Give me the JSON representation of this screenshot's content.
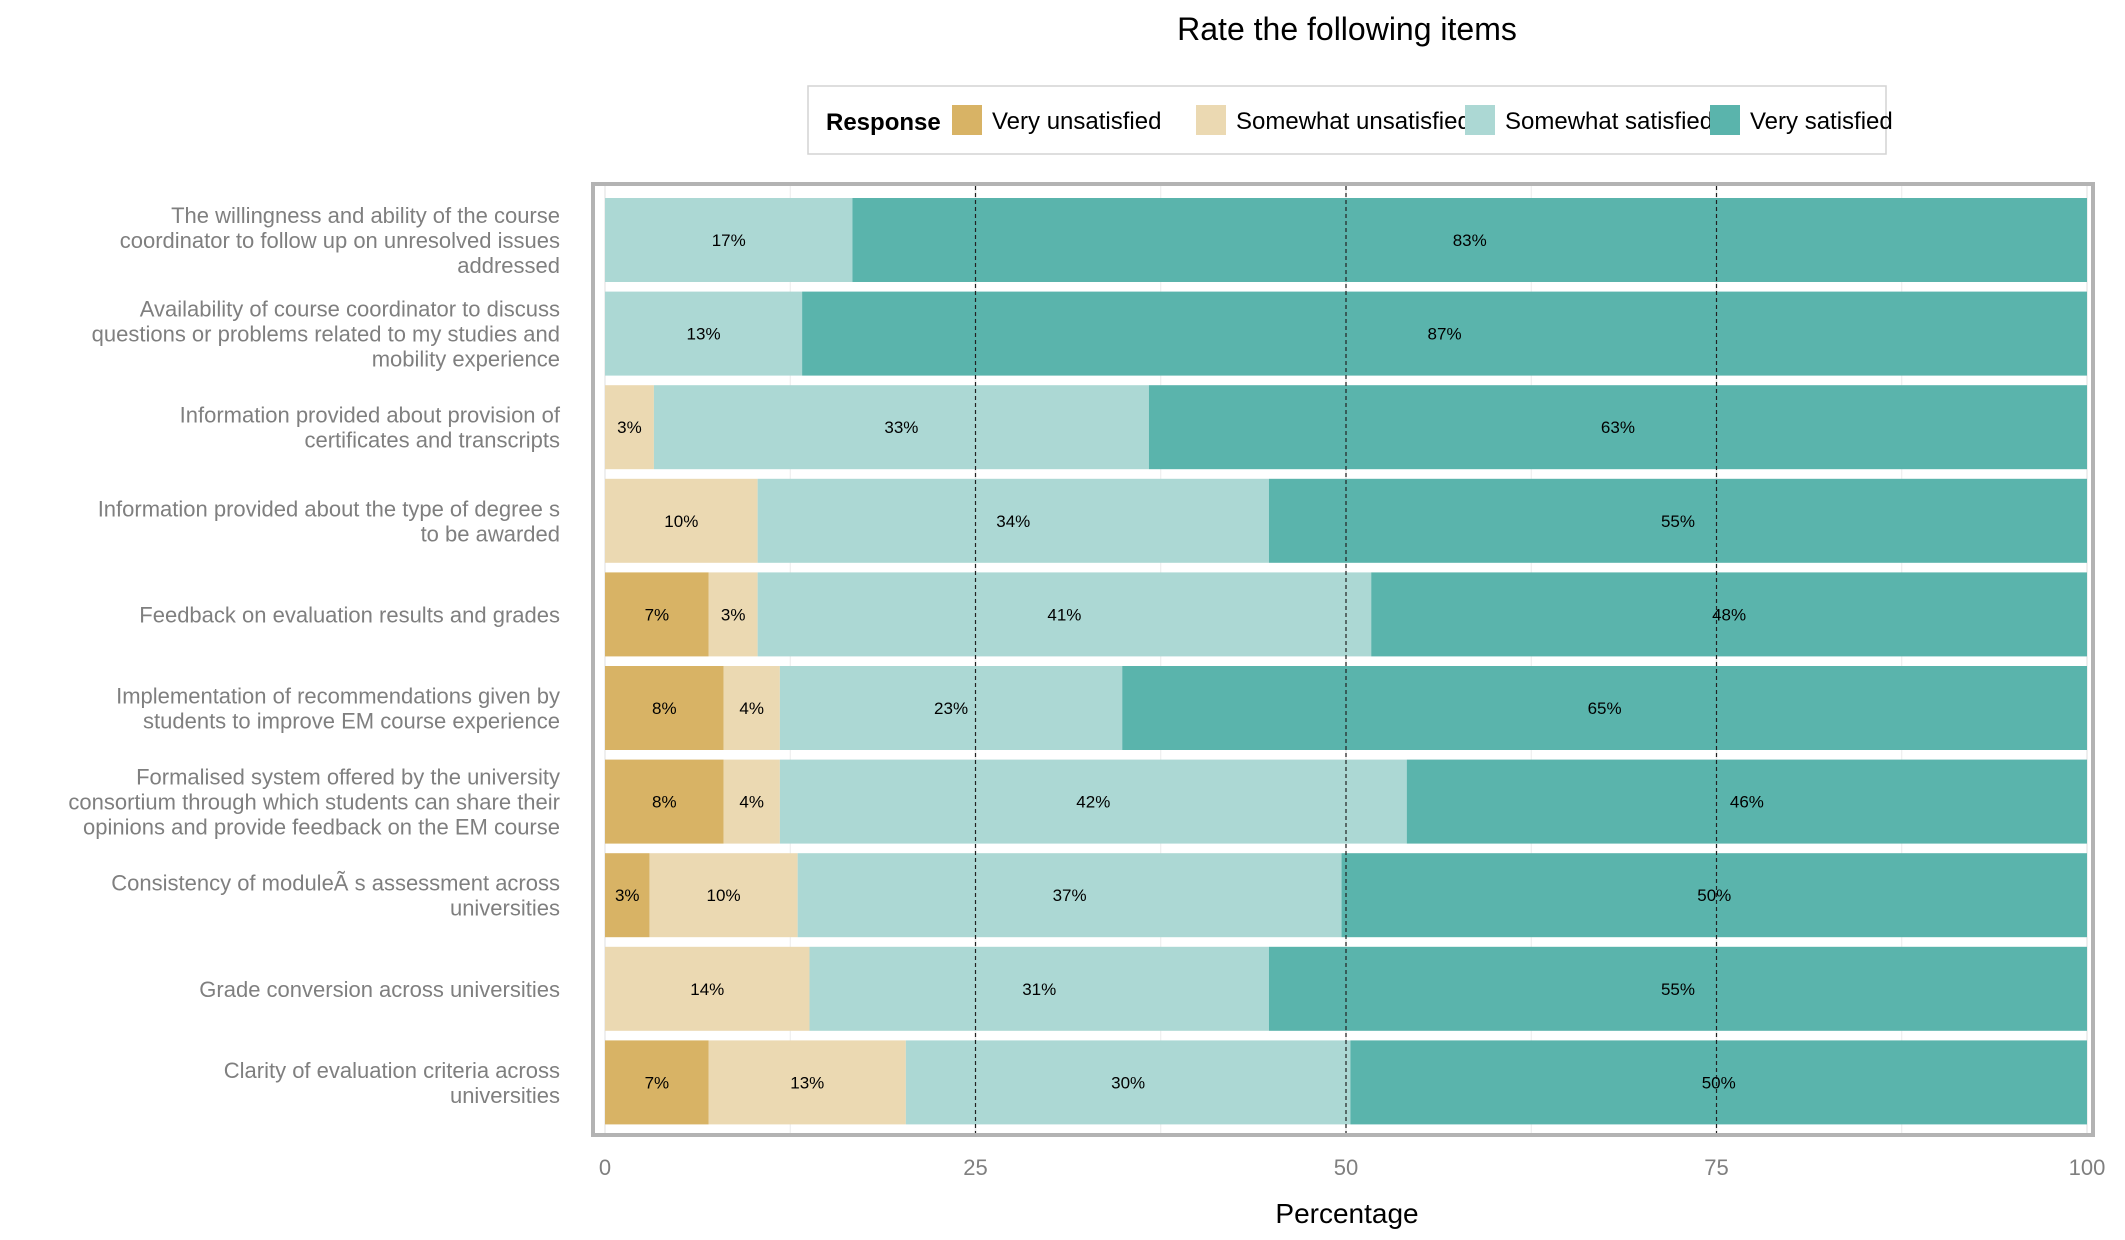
{
  "chart_data": {
    "type": "bar",
    "orientation": "horizontal",
    "stacked": true,
    "title": "Rate the following items",
    "xlabel": "Percentage",
    "ylabel": "",
    "xlim": [
      0,
      100
    ],
    "xticks": [
      0,
      25,
      50,
      75,
      100
    ],
    "grid": true,
    "legend": {
      "title": "Response",
      "position": "top"
    },
    "colors": {
      "Very unsatisfied": "#d8b365",
      "Somewhat unsatisfied": "#ebd9b2",
      "Somewhat satisfied": "#acd8d4",
      "Very satisfied": "#5ab4ac"
    },
    "categories": [
      [
        "The willingness and ability of the course",
        "coordinator to follow up on unresolved issues",
        "addressed"
      ],
      [
        "Availability of course coordinator to discuss",
        "questions or problems related to my studies and",
        "mobility experience"
      ],
      [
        "Information provided about provision of",
        "certificates and transcripts"
      ],
      [
        "Information provided about the type of degree s",
        "to be awarded"
      ],
      [
        "Feedback on evaluation results and grades"
      ],
      [
        "Implementation of recommendations given by",
        "students to improve EM course experience"
      ],
      [
        "Formalised system offered by the university",
        "consortium through which students can share their",
        "opinions and provide feedback on the EM course"
      ],
      [
        "Consistency of moduleÃ s assessment across",
        "universities"
      ],
      [
        "Grade conversion across universities"
      ],
      [
        "Clarity of evaluation criteria across",
        "universities"
      ]
    ],
    "series": [
      {
        "name": "Very unsatisfied",
        "values": [
          0,
          0,
          0,
          0,
          7,
          8,
          8,
          3,
          0,
          7
        ],
        "labels": [
          "",
          "",
          "",
          "",
          "7%",
          "8%",
          "8%",
          "3%",
          "",
          "7%"
        ]
      },
      {
        "name": "Somewhat unsatisfied",
        "values": [
          0,
          0,
          3.3,
          10.3,
          3.3,
          3.8,
          3.8,
          10,
          13.8,
          13.3
        ],
        "labels": [
          "",
          "",
          "3%",
          "10%",
          "3%",
          "4%",
          "4%",
          "10%",
          "14%",
          "13%"
        ]
      },
      {
        "name": "Somewhat satisfied",
        "values": [
          16.7,
          13.3,
          33.4,
          34.5,
          41.4,
          23.1,
          42.3,
          36.7,
          31.0,
          30.0
        ],
        "labels": [
          "17%",
          "13%",
          "33%",
          "34%",
          "41%",
          "23%",
          "42%",
          "37%",
          "31%",
          "30%"
        ]
      },
      {
        "name": "Very satisfied",
        "values": [
          83.3,
          86.7,
          63.3,
          55.2,
          48.3,
          65.1,
          45.9,
          50.3,
          55.2,
          49.7
        ],
        "labels": [
          "83%",
          "87%",
          "63%",
          "55%",
          "48%",
          "65%",
          "46%",
          "50%",
          "55%",
          "50%"
        ]
      }
    ]
  }
}
